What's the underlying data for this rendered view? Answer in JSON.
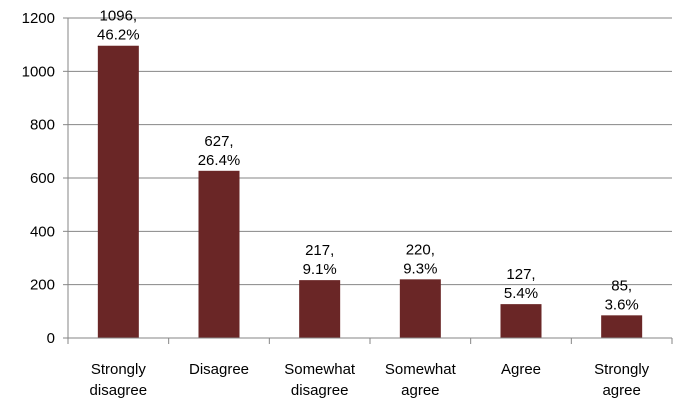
{
  "colors": {
    "bar": "#6a2626",
    "grid": "#868686",
    "axis": "#868686",
    "background": "#ffffff"
  },
  "chart_data": {
    "type": "bar",
    "title": "",
    "xlabel": "",
    "ylabel": "",
    "categories": [
      [
        "Strongly",
        "disagree"
      ],
      [
        "Disagree"
      ],
      [
        "Somewhat",
        "disagree"
      ],
      [
        "Somewhat",
        "agree"
      ],
      [
        "Agree"
      ],
      [
        "Strongly",
        "agree"
      ]
    ],
    "values": [
      1096,
      627,
      217,
      220,
      127,
      85
    ],
    "data_labels": [
      [
        "1096,",
        "46.2%"
      ],
      [
        "627,",
        "26.4%"
      ],
      [
        "217,",
        "9.1%"
      ],
      [
        "220,",
        "9.3%"
      ],
      [
        "127,",
        "5.4%"
      ],
      [
        "85,",
        "3.6%"
      ]
    ],
    "ylim": [
      0,
      1200
    ],
    "yticks": [
      0,
      200,
      400,
      600,
      800,
      1000,
      1200
    ],
    "grid": true,
    "legend": "none"
  }
}
